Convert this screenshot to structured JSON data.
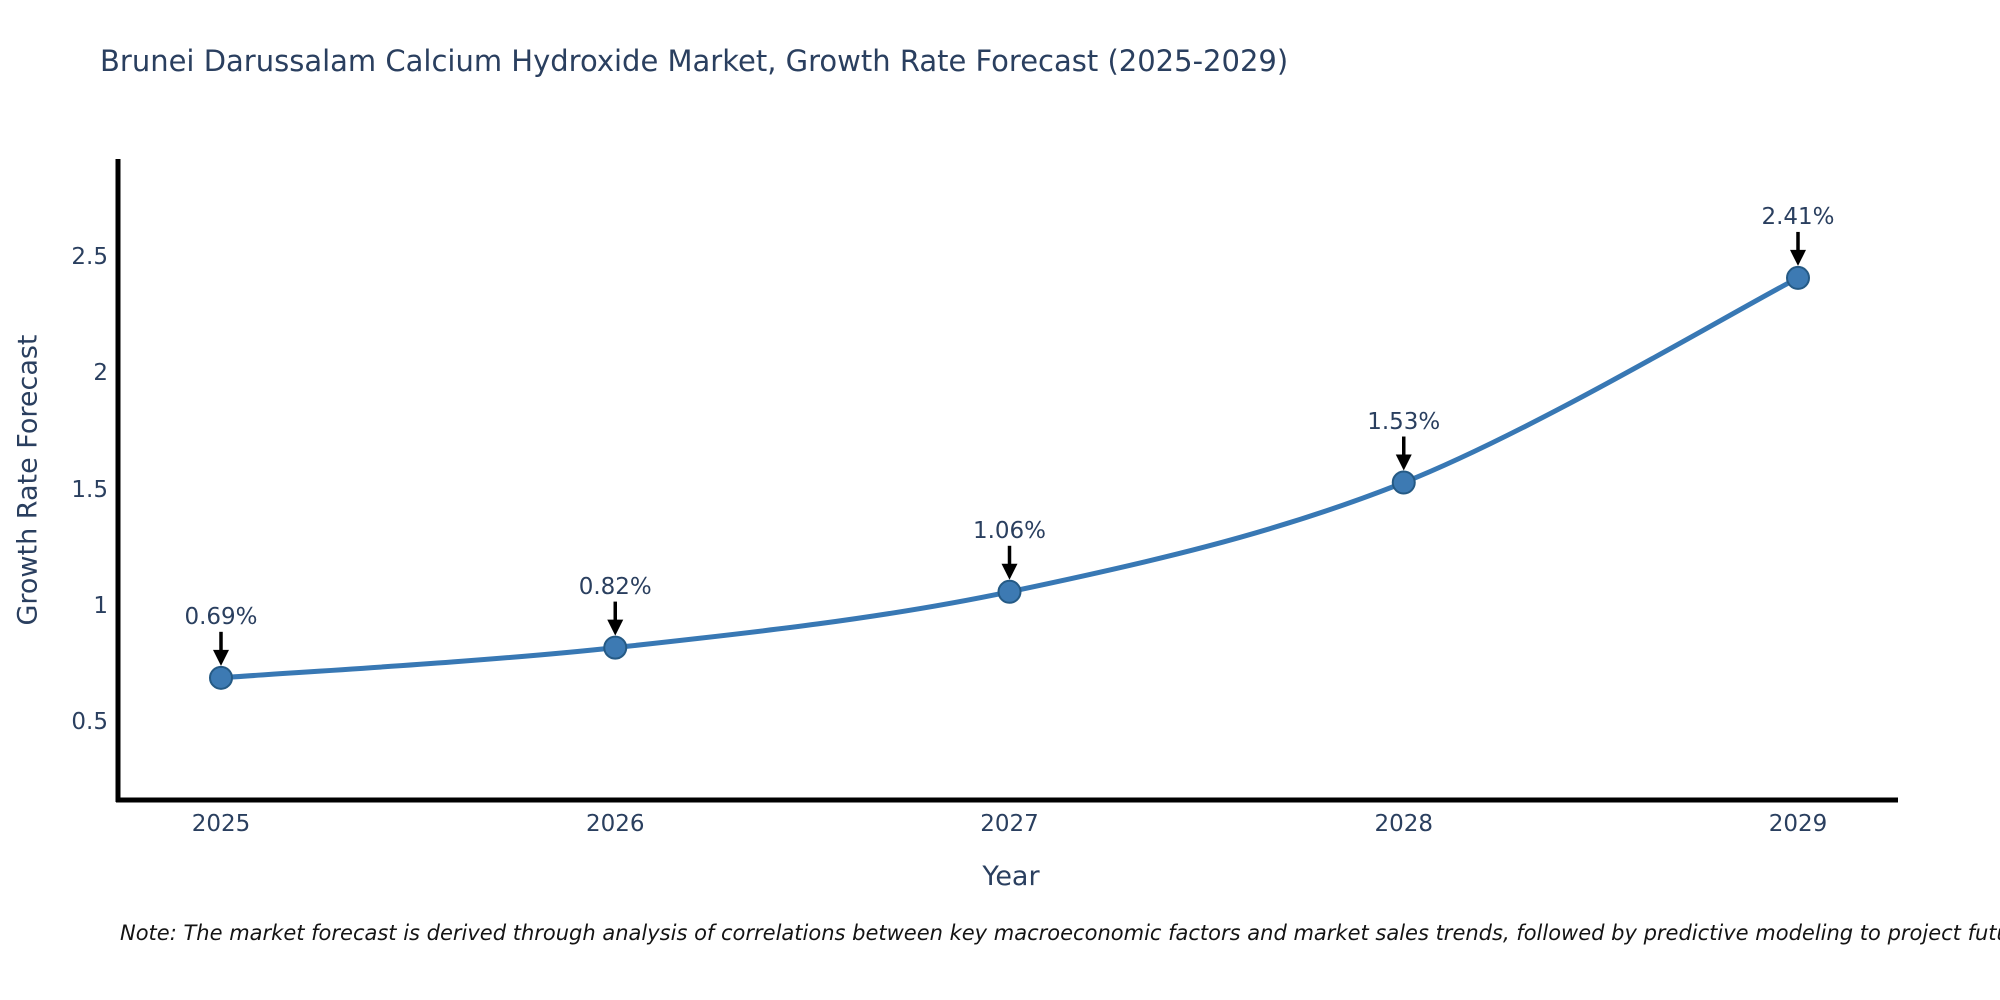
{
  "title": "Brunei Darussalam Calcium Hydroxide Market, Growth Rate Forecast (2025-2029)",
  "note": "Note: The market forecast is derived through analysis of correlations between key macroeconomic factors and market sales trends, followed by predictive modeling to project future sales",
  "chart_data": {
    "type": "line",
    "title": "Brunei Darussalam Calcium Hydroxide Market, Growth Rate Forecast (2025-2029)",
    "x": [
      2025,
      2026,
      2027,
      2028,
      2029
    ],
    "xtick_labels": [
      "2025",
      "2026",
      "2027",
      "2028",
      "2029"
    ],
    "series": [
      {
        "name": "Growth Rate Forecast",
        "values": [
          0.69,
          0.82,
          1.06,
          1.53,
          2.41
        ]
      }
    ],
    "point_labels": [
      "0.69%",
      "0.82%",
      "1.06%",
      "1.53%",
      "2.41%"
    ],
    "xlabel": "Year",
    "ylabel": "Growth Rate Forecast",
    "yticks": [
      0.5,
      1,
      1.5,
      2,
      2.5
    ],
    "ytick_labels": [
      "0.5",
      "1",
      "1.5",
      "2",
      "2.5"
    ],
    "ylim": [
      0.16,
      2.92
    ],
    "grid": false,
    "legend": false,
    "marker_shape": "circle",
    "annotation_arrows": true
  },
  "colors": {
    "line": "#3878b4",
    "marker_fill": "#3d7ab3",
    "marker_edge": "#255a85",
    "axis": "#000000",
    "arrow": "#000000",
    "text": "#2a3f5f",
    "note_text": "#141414",
    "background": "#ffffff"
  }
}
